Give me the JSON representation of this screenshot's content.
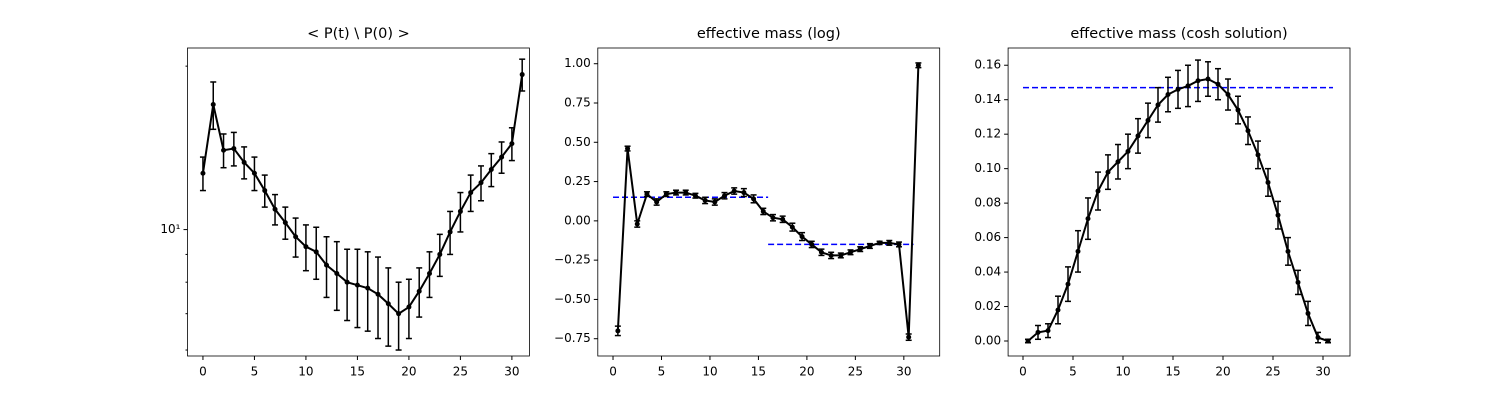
{
  "chart_data": [
    {
      "type": "errorbar",
      "title": "< P(t) \\ P(0) >",
      "yscale": "log",
      "x": [
        0,
        1,
        2,
        3,
        4,
        5,
        6,
        7,
        8,
        9,
        10,
        11,
        12,
        13,
        14,
        15,
        16,
        17,
        18,
        19,
        20,
        21,
        22,
        23,
        24,
        25,
        26,
        27,
        28,
        29,
        30,
        31
      ],
      "values": [
        12.7,
        17.0,
        14.0,
        14.1,
        13.3,
        12.7,
        11.8,
        10.9,
        10.3,
        9.7,
        9.3,
        9.1,
        8.6,
        8.3,
        8.0,
        7.9,
        7.8,
        7.6,
        7.3,
        7.0,
        7.2,
        7.7,
        8.3,
        9.0,
        9.9,
        10.8,
        11.7,
        12.2,
        12.9,
        13.6,
        14.4,
        19.3
      ],
      "errors": [
        0.9,
        1.7,
        1.0,
        1.0,
        0.9,
        0.9,
        0.8,
        0.7,
        0.7,
        0.8,
        0.9,
        1.0,
        1.1,
        1.2,
        1.2,
        1.3,
        1.3,
        1.3,
        1.2,
        1.0,
        0.9,
        0.8,
        0.8,
        0.8,
        0.9,
        0.9,
        0.9,
        0.9,
        0.9,
        0.9,
        1.0,
        1.3
      ],
      "color": "#000000",
      "xlim": [
        -1.5,
        31.7
      ],
      "xticks": [
        0,
        5,
        10,
        15,
        20,
        25,
        30
      ],
      "ylim": [
        5.85,
        21.6
      ],
      "yticks": [
        {
          "value": 10,
          "label": "10¹"
        }
      ],
      "yminorticks": [
        6,
        7,
        8,
        9,
        20
      ],
      "fits": [],
      "fit_color": "#0000ff"
    },
    {
      "type": "errorbar",
      "title": "effective mass (log)",
      "yscale": "linear",
      "x": [
        0.5,
        1.5,
        2.5,
        3.5,
        4.5,
        5.5,
        6.5,
        7.5,
        8.5,
        9.5,
        10.5,
        11.5,
        12.5,
        13.5,
        14.5,
        15.5,
        16.5,
        17.5,
        18.5,
        19.5,
        20.5,
        21.5,
        22.5,
        23.5,
        24.5,
        25.5,
        26.5,
        27.5,
        28.5,
        29.5,
        30.5,
        31.5
      ],
      "values": [
        -0.7,
        0.46,
        -0.02,
        0.17,
        0.12,
        0.17,
        0.18,
        0.18,
        0.16,
        0.13,
        0.12,
        0.16,
        0.19,
        0.18,
        0.14,
        0.06,
        0.02,
        0.01,
        -0.04,
        -0.1,
        -0.15,
        -0.2,
        -0.22,
        -0.22,
        -0.2,
        -0.18,
        -0.16,
        -0.14,
        -0.14,
        -0.15,
        -0.74,
        0.99
      ],
      "errors": [
        0.03,
        0.015,
        0.02,
        0.015,
        0.02,
        0.015,
        0.015,
        0.015,
        0.015,
        0.02,
        0.02,
        0.02,
        0.02,
        0.025,
        0.025,
        0.02,
        0.02,
        0.02,
        0.025,
        0.025,
        0.02,
        0.02,
        0.02,
        0.015,
        0.015,
        0.015,
        0.015,
        0.01,
        0.015,
        0.015,
        0.02,
        0.015
      ],
      "color": "#000000",
      "xlim": [
        -1.57,
        33.7
      ],
      "xticks": [
        0,
        5,
        10,
        15,
        20,
        25,
        30
      ],
      "ylim": [
        -0.86,
        1.1
      ],
      "yticks": [
        {
          "value": -0.75,
          "label": "−0.75"
        },
        {
          "value": -0.5,
          "label": "−0.50"
        },
        {
          "value": -0.25,
          "label": "−0.25"
        },
        {
          "value": 0,
          "label": "0.00"
        },
        {
          "value": 0.25,
          "label": "0.25"
        },
        {
          "value": 0.5,
          "label": "0.50"
        },
        {
          "value": 0.75,
          "label": "0.75"
        },
        {
          "value": 1,
          "label": "1.00"
        }
      ],
      "fits": [
        {
          "value": 0.15,
          "xrange": [
            0,
            16
          ]
        },
        {
          "value": -0.15,
          "xrange": [
            16,
            31
          ]
        }
      ],
      "fit_color": "#0000ff"
    },
    {
      "type": "errorbar",
      "title": "effective mass (cosh solution)",
      "yscale": "linear",
      "x": [
        0.5,
        1.5,
        2.5,
        3.5,
        4.5,
        5.5,
        6.5,
        7.5,
        8.5,
        9.5,
        10.5,
        11.5,
        12.5,
        13.5,
        14.5,
        15.5,
        16.5,
        17.5,
        18.5,
        19.5,
        20.5,
        21.5,
        22.5,
        23.5,
        24.5,
        25.5,
        26.5,
        27.5,
        28.5,
        29.5,
        30.5
      ],
      "values": [
        0.0,
        0.005,
        0.006,
        0.018,
        0.033,
        0.052,
        0.071,
        0.087,
        0.098,
        0.104,
        0.11,
        0.119,
        0.128,
        0.137,
        0.143,
        0.146,
        0.148,
        0.151,
        0.152,
        0.149,
        0.143,
        0.134,
        0.122,
        0.108,
        0.092,
        0.073,
        0.052,
        0.034,
        0.016,
        0.002,
        0.0
      ],
      "errors": [
        0.001,
        0.004,
        0.004,
        0.008,
        0.01,
        0.012,
        0.012,
        0.011,
        0.01,
        0.01,
        0.01,
        0.01,
        0.01,
        0.01,
        0.01,
        0.011,
        0.012,
        0.012,
        0.01,
        0.009,
        0.009,
        0.008,
        0.008,
        0.008,
        0.008,
        0.008,
        0.008,
        0.007,
        0.007,
        0.003,
        0.001
      ],
      "color": "#000000",
      "xlim": [
        -1.49,
        32.7
      ],
      "xticks": [
        0,
        5,
        10,
        15,
        20,
        25,
        30
      ],
      "ylim": [
        -0.0087,
        0.17
      ],
      "yticks": [
        {
          "value": 0,
          "label": "0.00"
        },
        {
          "value": 0.02,
          "label": "0.02"
        },
        {
          "value": 0.04,
          "label": "0.04"
        },
        {
          "value": 0.06,
          "label": "0.06"
        },
        {
          "value": 0.08,
          "label": "0.08"
        },
        {
          "value": 0.1,
          "label": "0.10"
        },
        {
          "value": 0.12,
          "label": "0.12"
        },
        {
          "value": 0.14,
          "label": "0.14"
        },
        {
          "value": 0.16,
          "label": "0.16"
        }
      ],
      "fits": [
        {
          "value": 0.147,
          "xrange": [
            0,
            31
          ]
        }
      ],
      "fit_color": "#0000ff"
    }
  ]
}
